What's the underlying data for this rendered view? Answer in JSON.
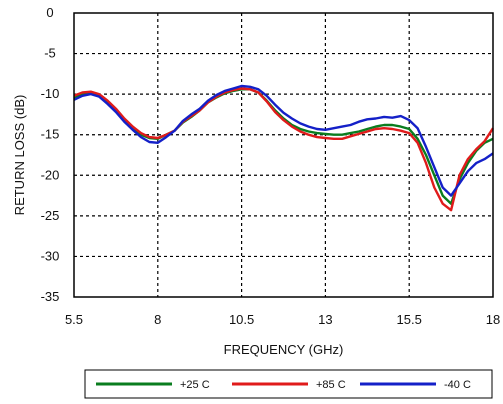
{
  "chart_data": {
    "type": "line",
    "title": "",
    "xlabel": "FREQUENCY (GHz)",
    "ylabel": "RETURN LOSS (dB)",
    "xlim": [
      5.5,
      18
    ],
    "ylim": [
      -35,
      0
    ],
    "xticks": [
      "5.5",
      "8",
      "10.5",
      "13",
      "15.5",
      "18"
    ],
    "xtick_values": [
      5.5,
      8,
      10.5,
      13,
      15.5,
      18
    ],
    "yticks": [
      "0",
      "-5",
      "-10",
      "-15",
      "-20",
      "-25",
      "-30",
      "-35"
    ],
    "ytick_values": [
      0,
      -5,
      -10,
      -15,
      -20,
      -25,
      -30,
      -35
    ],
    "grid": true,
    "grid_style": "dotted",
    "legend_position": "bottom",
    "series": [
      {
        "name": "+25 C",
        "color": "#0a7d1f",
        "x": [
          5.5,
          5.75,
          6.0,
          6.25,
          6.5,
          6.75,
          7.0,
          7.25,
          7.5,
          7.75,
          8.0,
          8.25,
          8.5,
          8.75,
          9.0,
          9.25,
          9.5,
          9.75,
          10.0,
          10.25,
          10.5,
          10.75,
          11.0,
          11.25,
          11.5,
          11.75,
          12.0,
          12.25,
          12.5,
          12.75,
          13.0,
          13.25,
          13.5,
          13.75,
          14.0,
          14.25,
          14.5,
          14.75,
          15.0,
          15.25,
          15.5,
          15.75,
          16.0,
          16.25,
          16.5,
          16.75,
          17.0,
          17.25,
          17.5,
          17.75,
          18.0
        ],
        "values": [
          -10.5,
          -10.0,
          -9.8,
          -10.2,
          -11.0,
          -12.0,
          -13.2,
          -14.2,
          -15.0,
          -15.4,
          -15.5,
          -15.0,
          -14.5,
          -13.5,
          -12.8,
          -12.0,
          -11.0,
          -10.4,
          -9.9,
          -9.6,
          -9.4,
          -9.4,
          -9.8,
          -10.8,
          -12.0,
          -13.0,
          -13.8,
          -14.3,
          -14.6,
          -14.8,
          -14.9,
          -15.0,
          -15.0,
          -14.8,
          -14.6,
          -14.3,
          -14.0,
          -13.8,
          -13.8,
          -14.0,
          -14.3,
          -15.5,
          -17.5,
          -20.0,
          -22.5,
          -23.5,
          -20.5,
          -18.5,
          -17.0,
          -16.0,
          -15.5
        ]
      },
      {
        "name": "+85 C",
        "color": "#e01b1b",
        "x": [
          5.5,
          5.75,
          6.0,
          6.25,
          6.5,
          6.75,
          7.0,
          7.25,
          7.5,
          7.75,
          8.0,
          8.25,
          8.5,
          8.75,
          9.0,
          9.25,
          9.5,
          9.75,
          10.0,
          10.25,
          10.5,
          10.75,
          11.0,
          11.25,
          11.5,
          11.75,
          12.0,
          12.25,
          12.5,
          12.75,
          13.0,
          13.25,
          13.5,
          13.75,
          14.0,
          14.25,
          14.5,
          14.75,
          15.0,
          15.25,
          15.5,
          15.75,
          16.0,
          16.25,
          16.5,
          16.75,
          17.0,
          17.25,
          17.5,
          17.75,
          18.0
        ],
        "values": [
          -10.2,
          -9.8,
          -9.7,
          -10.0,
          -10.8,
          -11.8,
          -13.0,
          -14.0,
          -14.8,
          -15.3,
          -15.4,
          -15.0,
          -14.5,
          -13.4,
          -12.7,
          -12.0,
          -11.0,
          -10.3,
          -9.8,
          -9.5,
          -9.3,
          -9.4,
          -9.8,
          -10.9,
          -12.2,
          -13.2,
          -14.0,
          -14.6,
          -15.0,
          -15.3,
          -15.4,
          -15.5,
          -15.5,
          -15.2,
          -14.9,
          -14.6,
          -14.3,
          -14.2,
          -14.3,
          -14.5,
          -14.8,
          -16.0,
          -18.5,
          -21.5,
          -23.5,
          -24.3,
          -20.0,
          -18.0,
          -16.8,
          -15.8,
          -14.2
        ]
      },
      {
        "name": "-40 C",
        "color": "#1420c8",
        "x": [
          5.5,
          5.75,
          6.0,
          6.25,
          6.5,
          6.75,
          7.0,
          7.25,
          7.5,
          7.75,
          8.0,
          8.25,
          8.5,
          8.75,
          9.0,
          9.25,
          9.5,
          9.75,
          10.0,
          10.25,
          10.5,
          10.75,
          11.0,
          11.25,
          11.5,
          11.75,
          12.0,
          12.25,
          12.5,
          12.75,
          13.0,
          13.25,
          13.5,
          13.75,
          14.0,
          14.25,
          14.5,
          14.75,
          15.0,
          15.25,
          15.5,
          15.75,
          16.0,
          16.25,
          16.5,
          16.75,
          17.0,
          17.25,
          17.5,
          17.75,
          18.0
        ],
        "values": [
          -10.7,
          -10.2,
          -10.0,
          -10.3,
          -11.2,
          -12.2,
          -13.4,
          -14.4,
          -15.3,
          -15.9,
          -16.0,
          -15.3,
          -14.5,
          -13.3,
          -12.5,
          -11.8,
          -10.8,
          -10.1,
          -9.6,
          -9.3,
          -9.0,
          -9.1,
          -9.4,
          -10.2,
          -11.3,
          -12.3,
          -13.0,
          -13.6,
          -14.0,
          -14.3,
          -14.4,
          -14.2,
          -14.0,
          -13.8,
          -13.4,
          -13.1,
          -13.0,
          -12.8,
          -12.9,
          -12.7,
          -13.2,
          -14.2,
          -16.5,
          -19.0,
          -21.5,
          -22.5,
          -21.0,
          -19.5,
          -18.5,
          -18.0,
          -17.3
        ]
      }
    ]
  }
}
